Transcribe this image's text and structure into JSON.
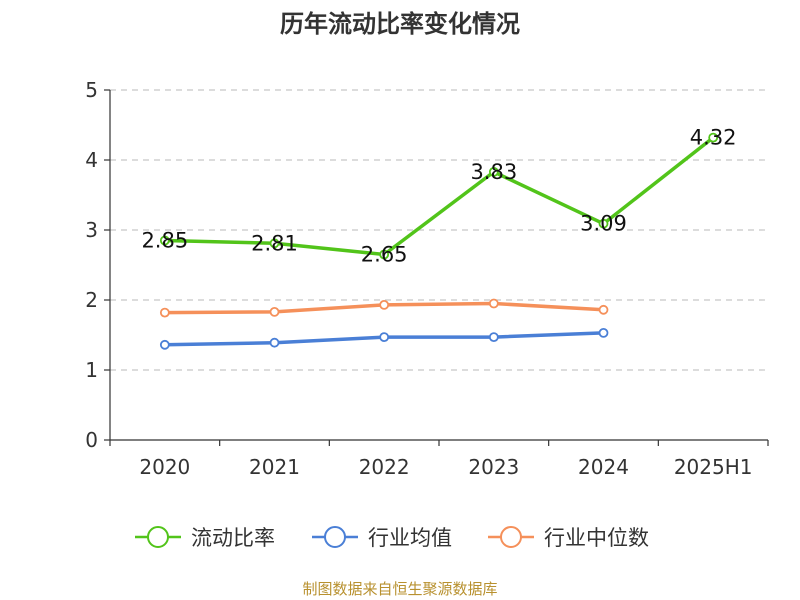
{
  "chart_data": {
    "type": "line",
    "title": "历年流动比率变化情况",
    "categories": [
      "2020",
      "2021",
      "2022",
      "2023",
      "2024",
      "2025H1"
    ],
    "ylim": [
      0,
      5
    ],
    "yticks": [
      "0",
      "1",
      "2",
      "3",
      "4",
      "5"
    ],
    "grid": true,
    "legend_position": "bottom",
    "series": [
      {
        "name": "流动比率",
        "color": "#52c41a",
        "values": [
          2.85,
          2.81,
          2.65,
          3.83,
          3.09,
          4.32
        ],
        "labels": [
          "2.85",
          "2.81",
          "2.65",
          "3.83",
          "3.09",
          "4.32"
        ]
      },
      {
        "name": "行业均值",
        "color": "#4a7fd6",
        "values": [
          1.36,
          1.39,
          1.47,
          1.47,
          1.53,
          null
        ]
      },
      {
        "name": "行业中位数",
        "color": "#f5905a",
        "values": [
          1.82,
          1.83,
          1.93,
          1.95,
          1.86,
          null
        ]
      }
    ]
  },
  "source_note": "制图数据来自恒生聚源数据库"
}
